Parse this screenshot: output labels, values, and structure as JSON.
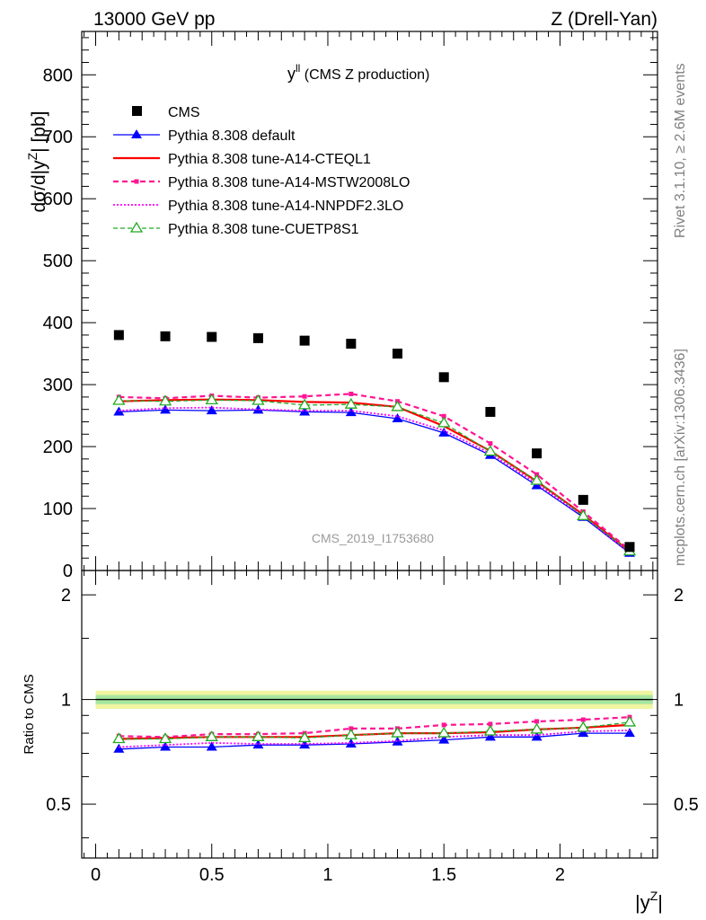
{
  "header": {
    "left": "13000 GeV pp",
    "right": "Z (Drell-Yan)"
  },
  "side_labels": {
    "rivet": "Rivet 3.1.10, ≥ 2.6M events",
    "mcplots": "mcplots.cern.ch [arXiv:1306.3436]"
  },
  "colors": {
    "cms": "#000000",
    "default": "#0000ff",
    "cteql1": "#ff0000",
    "mstw": "#ff1493",
    "nnpdf": "#ff00ff",
    "cuetp8s1": "#22aa22",
    "band_outer": "#f0f5a0",
    "band_inner": "#a6e6a0"
  },
  "chart_data": {
    "type": "line",
    "title_main": "y",
    "title_sup": "ll",
    "title_rest": " (CMS Z production)",
    "analysis_label": "CMS_2019_I1753680",
    "ylabel": "dσ/d|y",
    "ylabel_sup": "Z",
    "ylabel_rest": "| [pb]",
    "ratio_ylabel": "Ratio to CMS",
    "xlabel": "|y",
    "xlabel_sup": "Z",
    "xlabel_rest": "|",
    "xlim": [
      -0.06,
      2.42
    ],
    "ylim": [
      0,
      870
    ],
    "ratio_ylim": [
      0.35,
      2.35
    ],
    "ratio_log_scale": true,
    "x_ticks": [
      "0",
      "0.5",
      "1",
      "1.5",
      "2"
    ],
    "y_ticks": [
      "0",
      "100",
      "200",
      "300",
      "400",
      "500",
      "600",
      "700",
      "800"
    ],
    "ratio_y_ticks_left": [
      "0.5",
      "1",
      "2"
    ],
    "ratio_y_ticks_right": [
      "0.5",
      "1",
      "2"
    ],
    "x": [
      0.1,
      0.3,
      0.5,
      0.7,
      0.9,
      1.1,
      1.3,
      1.5,
      1.7,
      1.9,
      2.1,
      2.3
    ],
    "x_edges": [
      0.0,
      0.2,
      0.4,
      0.6,
      0.8,
      1.0,
      1.2,
      1.4,
      1.6,
      1.8,
      2.0,
      2.2,
      2.4
    ],
    "cms": {
      "name": "CMS",
      "values": [
        380,
        378,
        377,
        375,
        371,
        366,
        350,
        312,
        256,
        189,
        114,
        38
      ],
      "band_inner": 0.03,
      "band_outer": 0.06
    },
    "series": [
      {
        "name": "Pythia 8.308 default",
        "values": [
          256,
          259,
          258,
          259,
          256,
          255,
          245,
          222,
          186,
          137,
          86,
          28
        ],
        "ratio": [
          0.72,
          0.73,
          0.73,
          0.74,
          0.74,
          0.745,
          0.755,
          0.765,
          0.78,
          0.78,
          0.8,
          0.8
        ]
      },
      {
        "name": "Pythia 8.308 tune-A14-CTEQL1",
        "values": [
          273,
          275,
          276,
          275,
          272,
          271,
          264,
          233,
          193,
          144,
          90,
          31
        ],
        "ratio": [
          0.77,
          0.775,
          0.78,
          0.78,
          0.78,
          0.79,
          0.8,
          0.8,
          0.805,
          0.82,
          0.83,
          0.845
        ]
      },
      {
        "name": "Pythia 8.308 tune-A14-MSTW2008LO",
        "values": [
          280,
          278,
          282,
          279,
          281,
          285,
          273,
          249,
          205,
          155,
          95,
          33
        ],
        "ratio": [
          0.785,
          0.78,
          0.795,
          0.795,
          0.8,
          0.825,
          0.825,
          0.845,
          0.85,
          0.865,
          0.875,
          0.89
        ]
      },
      {
        "name": "Pythia 8.308 tune-A14-NNPDF2.3LO",
        "values": [
          258,
          262,
          263,
          260,
          258,
          258,
          249,
          226,
          189,
          140,
          88,
          29
        ],
        "ratio": [
          0.73,
          0.74,
          0.75,
          0.745,
          0.745,
          0.75,
          0.76,
          0.78,
          0.79,
          0.79,
          0.81,
          0.815
        ]
      },
      {
        "name": "Pythia 8.308 tune-CUETP8S1",
        "values": [
          274,
          273,
          275,
          274,
          267,
          268,
          264,
          238,
          192,
          145,
          88,
          31
        ],
        "ratio": [
          0.77,
          0.77,
          0.78,
          0.78,
          0.775,
          0.79,
          0.8,
          0.8,
          0.81,
          0.82,
          0.83,
          0.86
        ]
      }
    ],
    "legend_position": "top-left"
  }
}
